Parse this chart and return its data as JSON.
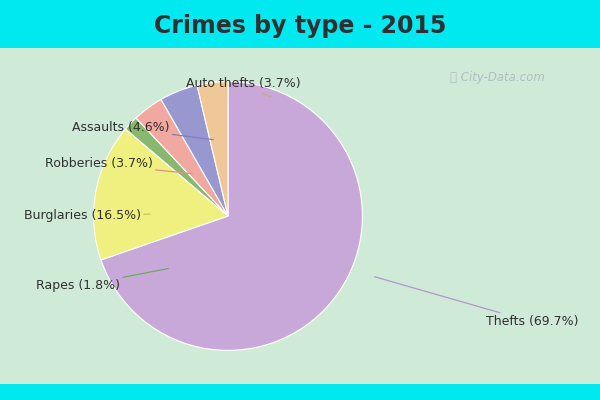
{
  "title": "Crimes by type - 2015",
  "labels": [
    "Thefts",
    "Burglaries",
    "Rapes",
    "Robberies",
    "Assaults",
    "Auto thefts"
  ],
  "percentages": [
    69.7,
    16.5,
    1.8,
    3.7,
    4.6,
    3.7
  ],
  "colors": [
    "#c8a8d8",
    "#f0f080",
    "#88b870",
    "#f0a8a0",
    "#9898d0",
    "#f0c898"
  ],
  "background_cyan": "#00e8f0",
  "background_main": "#d0ead8",
  "title_fontsize": 17,
  "label_fontsize": 9,
  "label_color": "#303030",
  "title_color": "#303030",
  "watermark_color": "#a8b8c0",
  "label_positions": {
    "Thefts": [
      0.81,
      0.195,
      0.62,
      0.31
    ],
    "Burglaries": [
      0.04,
      0.46,
      0.255,
      0.465
    ],
    "Rapes": [
      0.06,
      0.285,
      0.285,
      0.33
    ],
    "Robberies": [
      0.075,
      0.59,
      0.325,
      0.565
    ],
    "Assaults": [
      0.12,
      0.68,
      0.36,
      0.65
    ],
    "Auto thefts": [
      0.31,
      0.79,
      0.455,
      0.755
    ]
  },
  "line_colors": {
    "Thefts": "#b098c8",
    "Burglaries": "#c8c860",
    "Rapes": "#70a860",
    "Robberies": "#e09090",
    "Assaults": "#8080c0",
    "Auto thefts": "#c8a870"
  },
  "formatted": {
    "Thefts": "Thefts (69.7%)",
    "Burglaries": "Burglaries (16.5%)",
    "Rapes": "Rapes (1.8%)",
    "Robberies": "Robberies (3.7%)",
    "Assaults": "Assaults (4.6%)",
    "Auto thefts": "Auto thefts (3.7%)"
  }
}
